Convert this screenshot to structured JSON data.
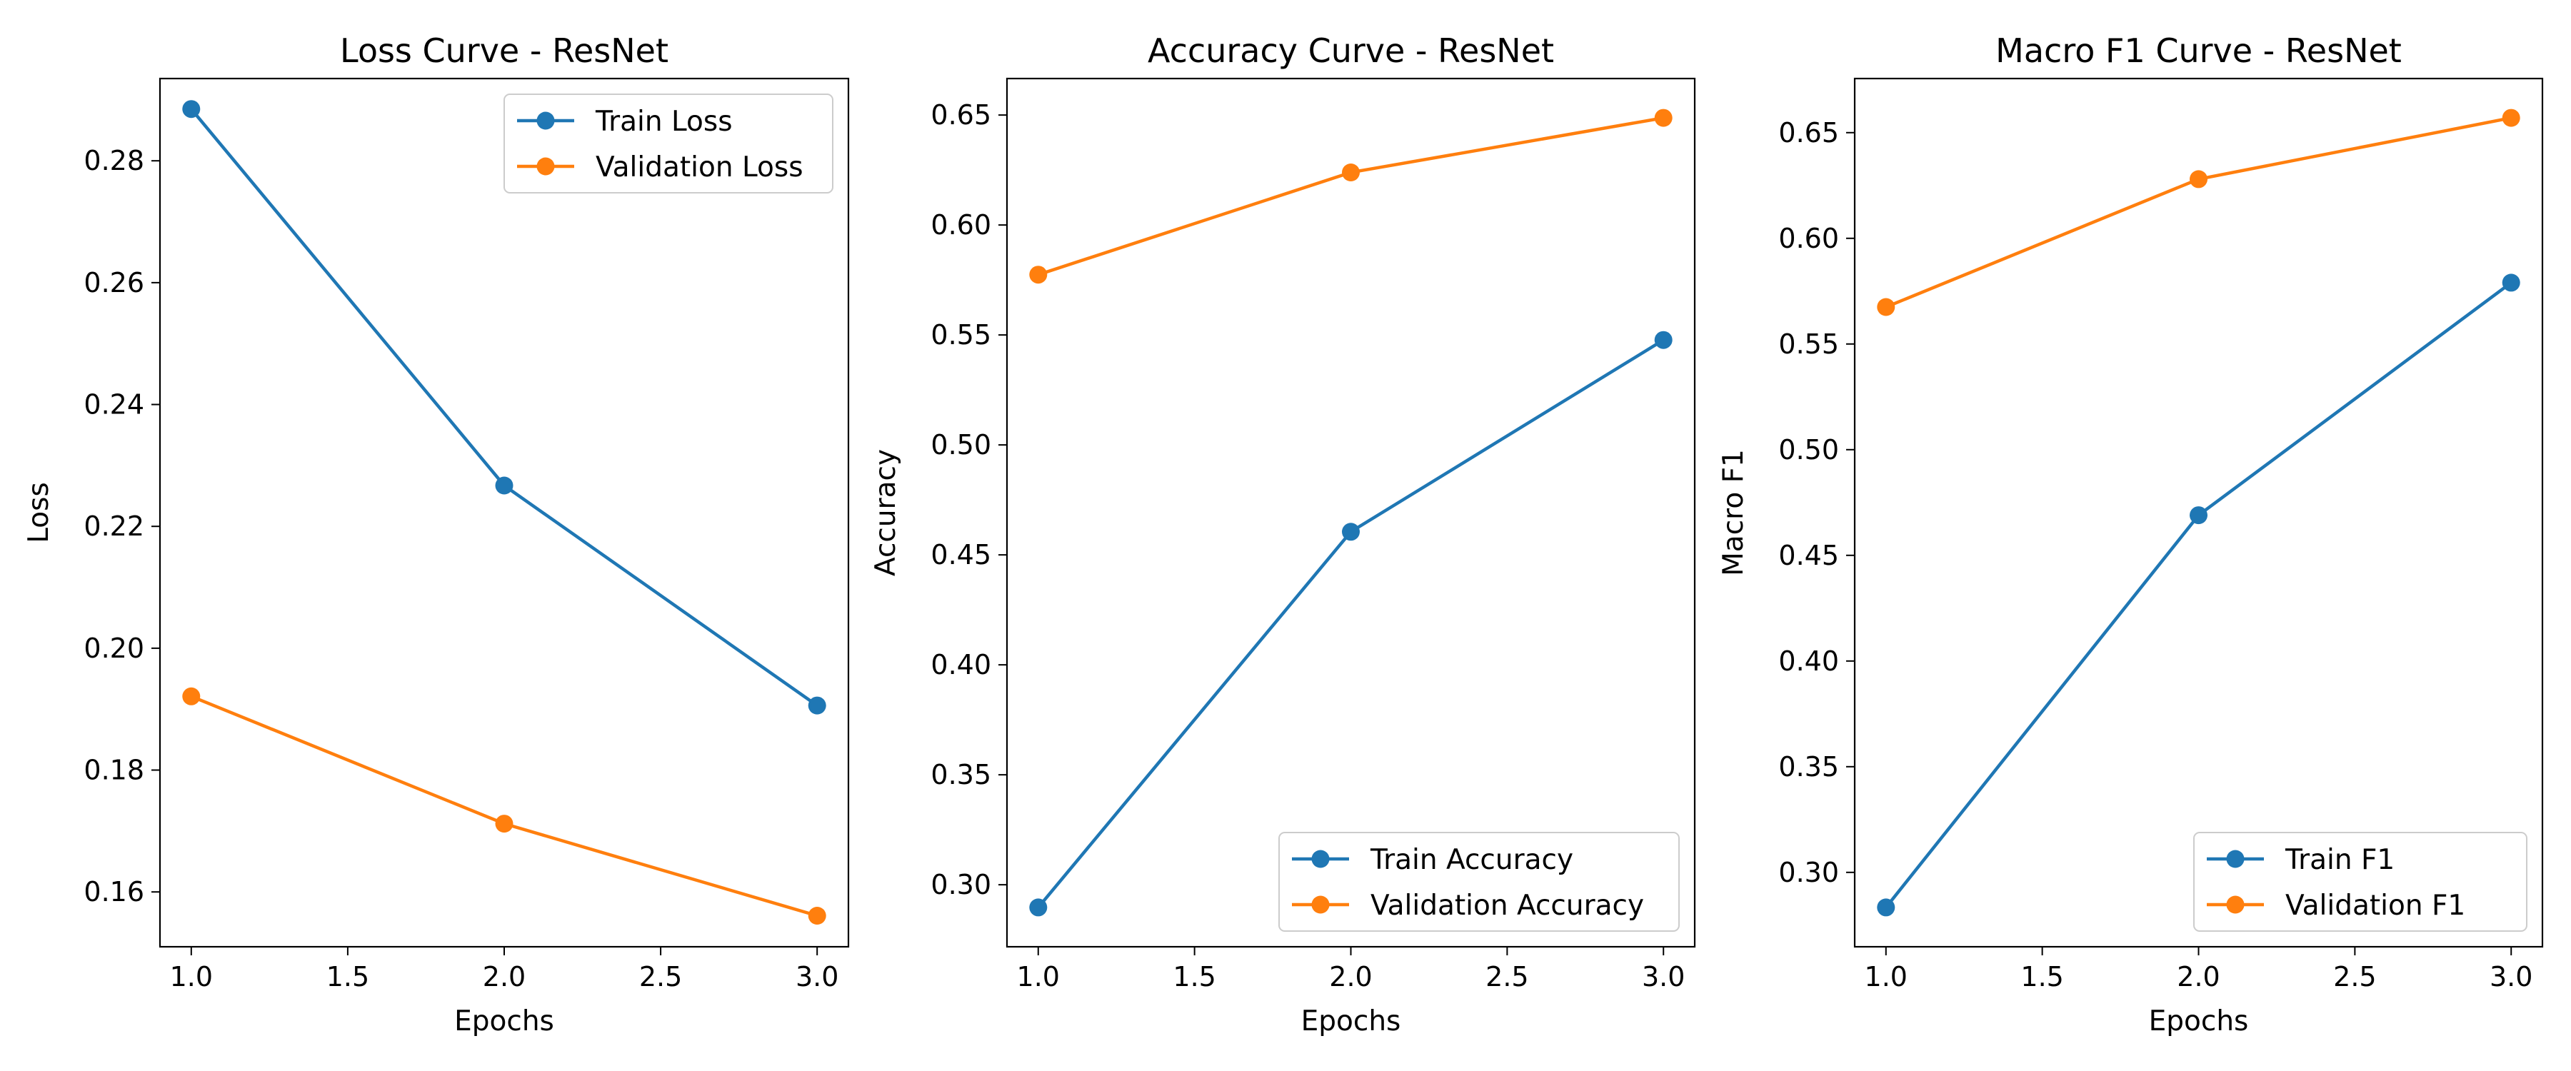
{
  "colors": {
    "train": "#1f77b4",
    "validation": "#ff7f0e"
  },
  "chart_data": [
    {
      "type": "line",
      "title": "Loss Curve - ResNet",
      "xlabel": "Epochs",
      "ylabel": "Loss",
      "x": [
        1.0,
        2.0,
        3.0
      ],
      "xlim": [
        0.9,
        3.1
      ],
      "ylim": [
        0.151,
        0.2935
      ],
      "xticks": [
        1.0,
        1.5,
        2.0,
        2.5,
        3.0
      ],
      "xtick_labels": [
        "1.0",
        "1.5",
        "2.0",
        "2.5",
        "3.0"
      ],
      "yticks": [
        0.16,
        0.18,
        0.2,
        0.22,
        0.24,
        0.26,
        0.28
      ],
      "ytick_labels": [
        "0.16",
        "0.18",
        "0.20",
        "0.22",
        "0.24",
        "0.26",
        "0.28"
      ],
      "legend_position": "upper right",
      "grid": false,
      "series": [
        {
          "name": "Train Loss",
          "values": [
            0.2885,
            0.2267,
            0.1906
          ]
        },
        {
          "name": "Validation Loss",
          "values": [
            0.1921,
            0.1712,
            0.1561
          ]
        }
      ]
    },
    {
      "type": "line",
      "title": "Accuracy Curve - ResNet",
      "xlabel": "Epochs",
      "ylabel": "Accuracy",
      "x": [
        1.0,
        2.0,
        3.0
      ],
      "xlim": [
        0.9,
        3.1
      ],
      "ylim": [
        0.2718,
        0.6666
      ],
      "xticks": [
        1.0,
        1.5,
        2.0,
        2.5,
        3.0
      ],
      "xtick_labels": [
        "1.0",
        "1.5",
        "2.0",
        "2.5",
        "3.0"
      ],
      "yticks": [
        0.3,
        0.35,
        0.4,
        0.45,
        0.5,
        0.55,
        0.6,
        0.65
      ],
      "ytick_labels": [
        "0.30",
        "0.35",
        "0.40",
        "0.45",
        "0.50",
        "0.55",
        "0.60",
        "0.65"
      ],
      "legend_position": "lower right",
      "grid": false,
      "series": [
        {
          "name": "Train Accuracy",
          "values": [
            0.2897,
            0.4605,
            0.5477
          ]
        },
        {
          "name": "Validation Accuracy",
          "values": [
            0.5774,
            0.6239,
            0.6487
          ]
        }
      ]
    },
    {
      "type": "line",
      "title": "Macro F1 Curve - ResNet",
      "xlabel": "Epochs",
      "ylabel": "Macro F1",
      "x": [
        1.0,
        2.0,
        3.0
      ],
      "xlim": [
        0.9,
        3.1
      ],
      "ylim": [
        0.2648,
        0.6756
      ],
      "xticks": [
        1.0,
        1.5,
        2.0,
        2.5,
        3.0
      ],
      "xtick_labels": [
        "1.0",
        "1.5",
        "2.0",
        "2.5",
        "3.0"
      ],
      "yticks": [
        0.3,
        0.35,
        0.4,
        0.45,
        0.5,
        0.55,
        0.6,
        0.65
      ],
      "ytick_labels": [
        "0.30",
        "0.35",
        "0.40",
        "0.45",
        "0.50",
        "0.55",
        "0.60",
        "0.65"
      ],
      "legend_position": "lower right",
      "grid": false,
      "series": [
        {
          "name": "Train F1",
          "values": [
            0.2834,
            0.469,
            0.579
          ]
        },
        {
          "name": "Validation F1",
          "values": [
            0.5675,
            0.628,
            0.657
          ]
        }
      ]
    }
  ]
}
